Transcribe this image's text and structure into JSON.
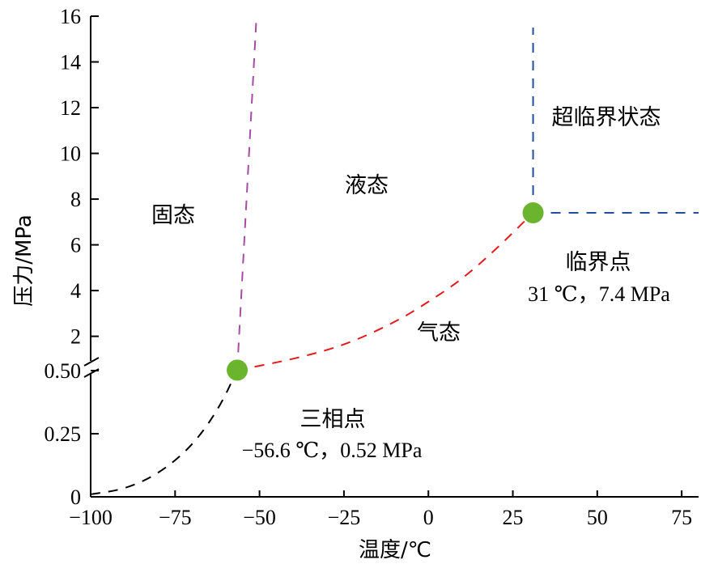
{
  "chart_data": {
    "type": "line",
    "title": "",
    "xlabel": "温度/℃",
    "ylabel": "压力/MPa",
    "xlim": [
      -100,
      80
    ],
    "x_ticks": [
      -100,
      -75,
      -50,
      -25,
      0,
      25,
      50,
      75
    ],
    "x_tick_labels": [
      "−100",
      "−75",
      "−50",
      "−25",
      "0",
      "25",
      "50",
      "75"
    ],
    "y_ticks_lower": [
      0,
      0.25,
      0.5
    ],
    "y_tick_labels_lower": [
      "0",
      "0.25",
      "0.50"
    ],
    "y_ticks_upper": [
      2,
      4,
      6,
      8,
      10,
      12,
      14,
      16
    ],
    "y_tick_labels_upper": [
      "2",
      "4",
      "6",
      "8",
      "10",
      "12",
      "14",
      "16"
    ],
    "axis_break": "y-axis broken at 0.50",
    "series": [
      {
        "name": "sublimation-curve",
        "color": "#000000",
        "style": "dashed",
        "points": [
          [
            -100,
            0.01
          ],
          [
            -90,
            0.03
          ],
          [
            -80,
            0.09
          ],
          [
            -70,
            0.2
          ],
          [
            -62,
            0.35
          ],
          [
            -56.6,
            0.52
          ]
        ]
      },
      {
        "name": "melting-curve",
        "color": "#a64ca6",
        "style": "dashed",
        "points": [
          [
            -56.6,
            0.52
          ],
          [
            -51,
            15.7
          ]
        ]
      },
      {
        "name": "vaporization-curve",
        "color": "#e41a1c",
        "style": "dashed",
        "points": [
          [
            -56.6,
            0.52
          ],
          [
            -40,
            1.0
          ],
          [
            -25,
            1.6
          ],
          [
            -10,
            2.6
          ],
          [
            0,
            3.5
          ],
          [
            10,
            4.5
          ],
          [
            20,
            5.8
          ],
          [
            31,
            7.4
          ]
        ]
      },
      {
        "name": "supercritical-vertical",
        "color": "#1f4e9c",
        "style": "dashed",
        "points": [
          [
            31,
            7.4
          ],
          [
            31,
            15.5
          ]
        ]
      },
      {
        "name": "supercritical-horizontal",
        "color": "#1f4e9c",
        "style": "dashed",
        "points": [
          [
            31,
            7.4
          ],
          [
            80,
            7.4
          ]
        ]
      }
    ],
    "markers": [
      {
        "name": "triple-point",
        "x": -56.6,
        "y": 0.52,
        "color": "#6ab42e"
      },
      {
        "name": "critical-point",
        "x": 31,
        "y": 7.4,
        "color": "#6ab42e"
      }
    ],
    "annotations": {
      "solid": "固态",
      "liquid": "液态",
      "gas": "气态",
      "supercritical": "超临界状态",
      "critical_point_label": "临界点",
      "critical_point_value": "31 ℃，7.4 MPa",
      "triple_point_label": "三相点",
      "triple_point_value": "−56.6 ℃，0.52 MPa"
    }
  }
}
